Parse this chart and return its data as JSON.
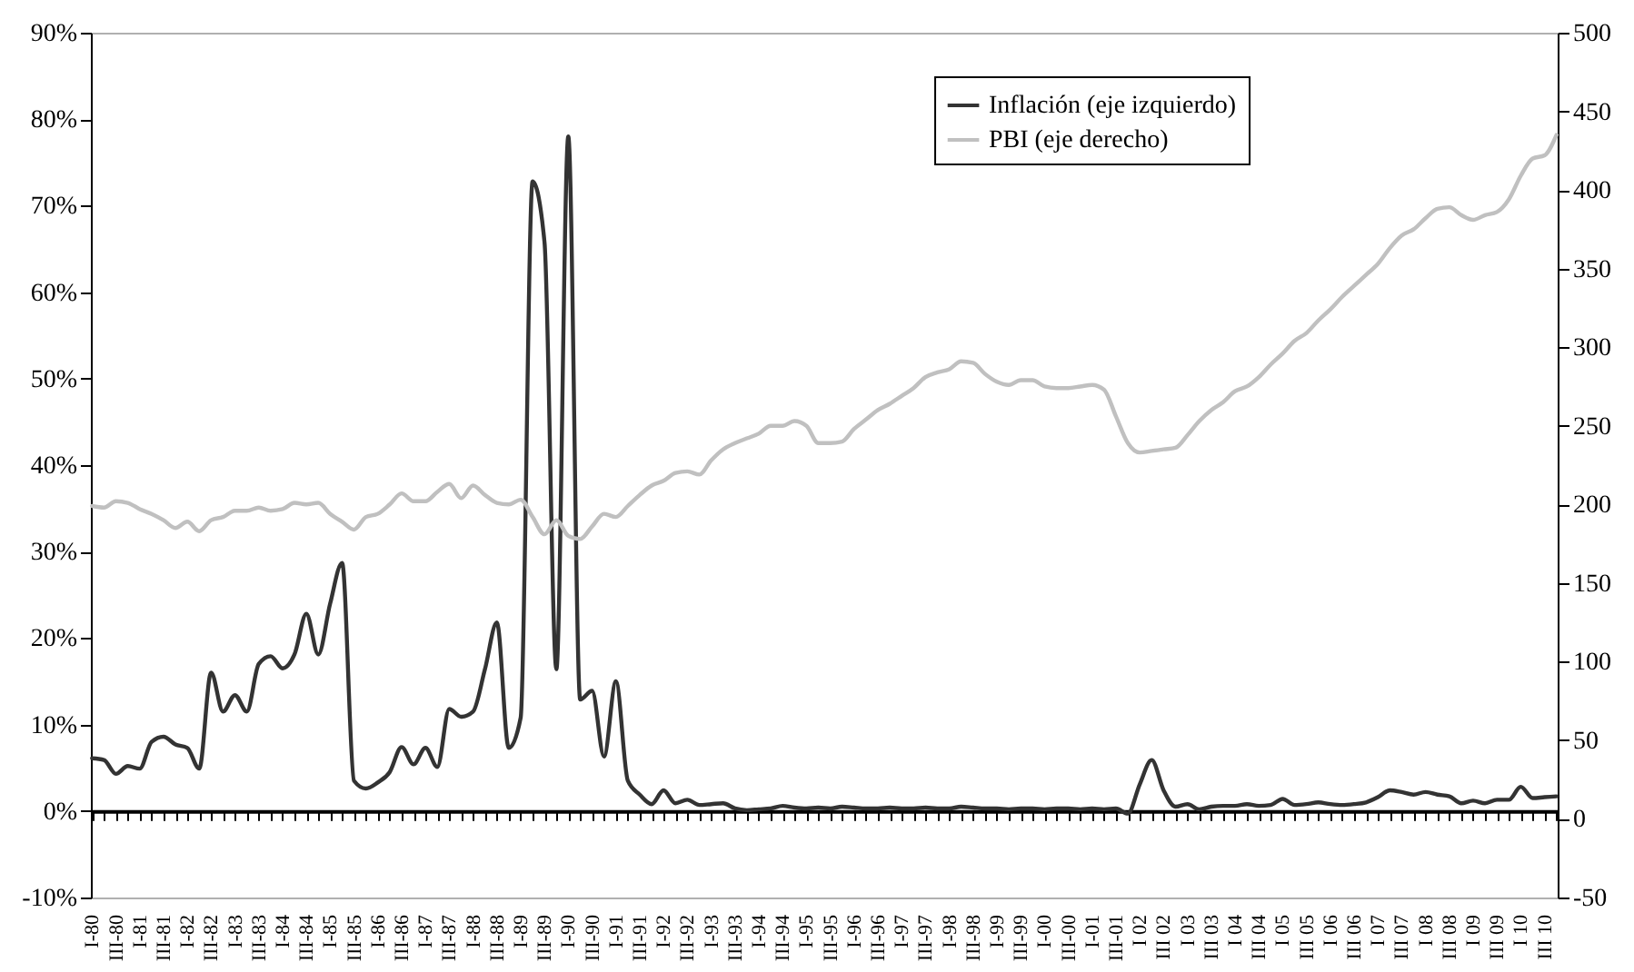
{
  "chart_data": {
    "type": "line",
    "categories": [
      "I-80",
      null,
      "III-80",
      null,
      "I-81",
      null,
      "III-81",
      null,
      "I-82",
      null,
      "III-82",
      null,
      "I-83",
      null,
      "III-83",
      null,
      "I-84",
      null,
      "III-84",
      null,
      "I-85",
      null,
      "III-85",
      null,
      "I-86",
      null,
      "III-86",
      null,
      "I-87",
      null,
      "III-87",
      null,
      "I-88",
      null,
      "III-88",
      null,
      "I-89",
      null,
      "III-89",
      null,
      "I-90",
      null,
      "III-90",
      null,
      "I-91",
      null,
      "III-91",
      null,
      "I-92",
      null,
      "III-92",
      null,
      "I-93",
      null,
      "III-93",
      null,
      "I-94",
      null,
      "III-94",
      null,
      "I-95",
      null,
      "III-95",
      null,
      "I-96",
      null,
      "III-96",
      null,
      "I-97",
      null,
      "III-97",
      null,
      "I-98",
      null,
      "III-98",
      null,
      "I-99",
      null,
      "III-99",
      null,
      "I-00",
      null,
      "III-00",
      null,
      "I-01",
      null,
      "III-01",
      null,
      "I 02",
      null,
      "III 02",
      null,
      "I 03",
      null,
      "III 03",
      null,
      "I 04",
      null,
      "III 04",
      null,
      "I 05",
      null,
      "III 05",
      null,
      "I 06",
      null,
      "III 06",
      null,
      "I 07",
      null,
      "III 07",
      null,
      "I 08",
      null,
      "III 08",
      null,
      "I 09",
      null,
      "III 09",
      null,
      "I 10",
      null,
      "III 10",
      null
    ],
    "series": [
      {
        "name": "Inflación (eje izquierdo)",
        "color": "#333333",
        "values": [
          6.1,
          5.9,
          4.3,
          5.2,
          4.9,
          8.0,
          8.6,
          7.7,
          7.3,
          4.9,
          16.0,
          11.5,
          13.4,
          11.5,
          17.0,
          17.9,
          16.5,
          18.1,
          22.8,
          18.1,
          24.0,
          28.7,
          3.5,
          2.6,
          3.3,
          4.5,
          7.4,
          5.4,
          7.3,
          5.1,
          11.8,
          10.9,
          11.5,
          16.4,
          21.8,
          7.3,
          10.8,
          72.8,
          65.8,
          16.4,
          78.0,
          12.9,
          13.9,
          6.3,
          15.0,
          3.5,
          1.9,
          0.8,
          2.4,
          0.9,
          1.3,
          0.7,
          0.8,
          0.9,
          0.3,
          0.1,
          0.2,
          0.3,
          0.6,
          0.4,
          0.3,
          0.4,
          0.3,
          0.5,
          0.4,
          0.3,
          0.3,
          0.4,
          0.3,
          0.3,
          0.4,
          0.3,
          0.3,
          0.5,
          0.4,
          0.3,
          0.3,
          0.2,
          0.3,
          0.3,
          0.2,
          0.3,
          0.3,
          0.2,
          0.3,
          0.2,
          0.3,
          -0.3,
          3.1,
          5.9,
          2.4,
          0.5,
          0.8,
          0.2,
          0.5,
          0.6,
          0.6,
          0.8,
          0.6,
          0.7,
          1.4,
          0.7,
          0.8,
          1.0,
          0.8,
          0.7,
          0.8,
          1.0,
          1.6,
          2.4,
          2.2,
          1.9,
          2.2,
          1.9,
          1.7,
          0.9,
          1.2,
          0.9,
          1.3,
          1.3,
          2.8,
          1.5,
          1.6,
          1.7
        ]
      },
      {
        "name": "PBI (eje derecho)",
        "color": "#c0c0c0",
        "axis": "y2",
        "values": [
          199,
          198,
          202,
          201,
          197,
          194,
          190,
          185,
          189,
          183,
          190,
          192,
          196,
          196,
          198,
          196,
          197,
          201,
          200,
          201,
          194,
          189,
          184,
          192,
          194,
          200,
          207,
          202,
          202,
          208,
          213,
          204,
          212,
          206,
          201,
          200,
          203,
          192,
          181,
          190,
          180,
          178,
          186,
          194,
          192,
          199,
          206,
          212,
          215,
          220,
          221,
          219,
          228,
          235,
          239,
          242,
          245,
          250,
          250,
          253,
          250,
          239,
          239,
          240,
          248,
          254,
          260,
          264,
          269,
          274,
          281,
          284,
          286,
          291,
          290,
          283,
          278,
          276,
          279,
          279,
          275,
          274,
          274,
          275,
          276,
          273,
          256,
          239,
          233,
          234,
          235,
          236,
          244,
          253,
          260,
          265,
          272,
          275,
          281,
          289,
          296,
          304,
          309,
          317,
          324,
          332,
          339,
          346,
          353,
          363,
          371,
          375,
          382,
          388,
          389,
          384,
          381,
          384,
          386,
          394,
          409,
          420,
          422,
          435
        ]
      }
    ],
    "ylim": [
      -10,
      90
    ],
    "yticks": [
      {
        "value": -10,
        "label": "-10%"
      },
      {
        "value": 0,
        "label": "0%"
      },
      {
        "value": 10,
        "label": "10%"
      },
      {
        "value": 20,
        "label": "20%"
      },
      {
        "value": 30,
        "label": "30%"
      },
      {
        "value": 40,
        "label": "40%"
      },
      {
        "value": 50,
        "label": "50%"
      },
      {
        "value": 60,
        "label": "60%"
      },
      {
        "value": 70,
        "label": "70%"
      },
      {
        "value": 80,
        "label": "80%"
      },
      {
        "value": 90,
        "label": "90%"
      }
    ],
    "y2lim": [
      -50,
      500
    ],
    "y2ticks": [
      -50,
      0,
      50,
      100,
      150,
      200,
      250,
      300,
      350,
      400,
      450,
      500
    ],
    "legend": "top right"
  }
}
